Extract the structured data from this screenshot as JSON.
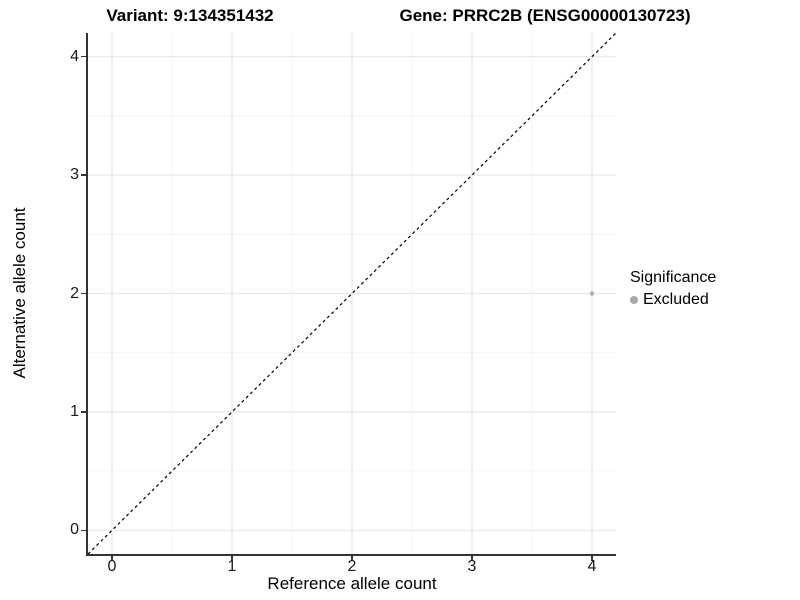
{
  "titles": {
    "variant": "Variant: 9:134351432",
    "gene": "Gene: PRRC2B (ENSG00000130723)"
  },
  "legend": {
    "title": "Significance",
    "items": [
      {
        "label": "Excluded",
        "color": "#a8a8a8"
      }
    ]
  },
  "colors": {
    "background": "#ffffff",
    "grid_major": "#e7e7e7",
    "grid_minor": "#f3f3f3",
    "axis": "#333333",
    "identity_line": "#000000",
    "point_excluded": "#b3b3b3",
    "text": "#000000"
  },
  "chart_data": {
    "type": "scatter",
    "title": "Variant: 9:134351432    Gene: PRRC2B (ENSG00000130723)",
    "xlabel": "Reference allele count",
    "ylabel": "Alternative allele count",
    "xlim": [
      -0.2,
      4.2
    ],
    "ylim": [
      -0.2,
      4.2
    ],
    "x_ticks": [
      0,
      1,
      2,
      3,
      4
    ],
    "y_ticks": [
      0,
      1,
      2,
      3,
      4
    ],
    "grid": "major and minor gridlines, light gray on white",
    "legend_position": "right",
    "legend_title": "Significance",
    "series": [
      {
        "name": "Excluded",
        "color": "#b3b3b3",
        "points": [
          {
            "x": 4,
            "y": 2
          }
        ]
      }
    ],
    "reference_line": {
      "kind": "identity y=x",
      "style": "dashed",
      "color": "#000000",
      "from": [
        -0.2,
        -0.2
      ],
      "to": [
        4.2,
        4.2
      ]
    }
  }
}
